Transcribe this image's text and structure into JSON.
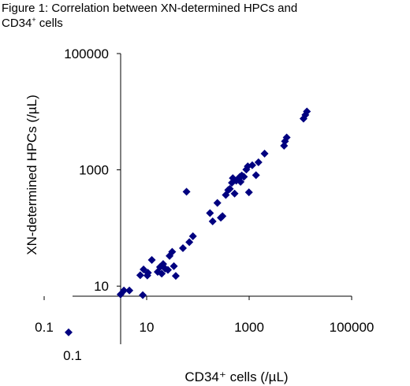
{
  "figure": {
    "title_line1": "Figure 1: Correlation between XN-determined HPCs and",
    "title_line2_main": "CD34",
    "title_line2_sup": "+",
    "title_line2_rest": " cells"
  },
  "chart_data": {
    "type": "scatter",
    "xscale": "log",
    "yscale": "log",
    "xlim": [
      0.1,
      100000
    ],
    "ylim": [
      1,
      100000
    ],
    "xlabel": "CD34⁺ cells (/µL)",
    "ylabel": "XN-determined HPCs (/µL)",
    "x_ticks": [
      {
        "value": 0.1,
        "label": "0.1"
      },
      {
        "value": 10,
        "label": "10"
      },
      {
        "value": 1000,
        "label": "1000"
      },
      {
        "value": 100000,
        "label": "100000"
      }
    ],
    "y_ticks": [
      {
        "value": 10,
        "label": "10"
      },
      {
        "value": 1000,
        "label": "1000"
      },
      {
        "value": 100000,
        "label": "100000"
      }
    ],
    "extra_labels": [
      {
        "label": "0.1"
      }
    ],
    "marker": "diamond",
    "color": "#000080",
    "grid": false,
    "points": [
      [
        0.3,
        1.6
      ],
      [
        3.1,
        7.2
      ],
      [
        3.6,
        8.4
      ],
      [
        4.6,
        8.4
      ],
      [
        8.4,
        7.0
      ],
      [
        7.5,
        15.4
      ],
      [
        8.7,
        19.4
      ],
      [
        10.3,
        15.2
      ],
      [
        12.6,
        28.2
      ],
      [
        10.6,
        17.0
      ],
      [
        16.4,
        17.6
      ],
      [
        18.2,
        21.3
      ],
      [
        19.7,
        16.4
      ],
      [
        21.0,
        24.0
      ],
      [
        23.0,
        20.0
      ],
      [
        26.0,
        19.0
      ],
      [
        28.0,
        33.0
      ],
      [
        31.5,
        39.0
      ],
      [
        34.0,
        22.0
      ],
      [
        37.0,
        15.0
      ],
      [
        51.0,
        45.0
      ],
      [
        68.0,
        57.0
      ],
      [
        80.0,
        72.0
      ],
      [
        60.0,
        420.0
      ],
      [
        172,
        180
      ],
      [
        194,
        130
      ],
      [
        240,
        270
      ],
      [
        280,
        150
      ],
      [
        302,
        160
      ],
      [
        350,
        370
      ],
      [
        390,
        450
      ],
      [
        420,
        470
      ],
      [
        460,
        600
      ],
      [
        480,
        720
      ],
      [
        520,
        390
      ],
      [
        560,
        650
      ],
      [
        610,
        700
      ],
      [
        660,
        760
      ],
      [
        680,
        620
      ],
      [
        720,
        800
      ],
      [
        790,
        760
      ],
      [
        880,
        1010
      ],
      [
        940,
        1150
      ],
      [
        990,
        410
      ],
      [
        1150,
        1200
      ],
      [
        1360,
        810
      ],
      [
        1520,
        1350
      ],
      [
        2000,
        1900
      ],
      [
        4800,
        2600
      ],
      [
        5000,
        3100
      ],
      [
        5400,
        3600
      ],
      [
        11500,
        7600
      ],
      [
        12500,
        8800
      ],
      [
        13400,
        10100
      ]
    ]
  }
}
